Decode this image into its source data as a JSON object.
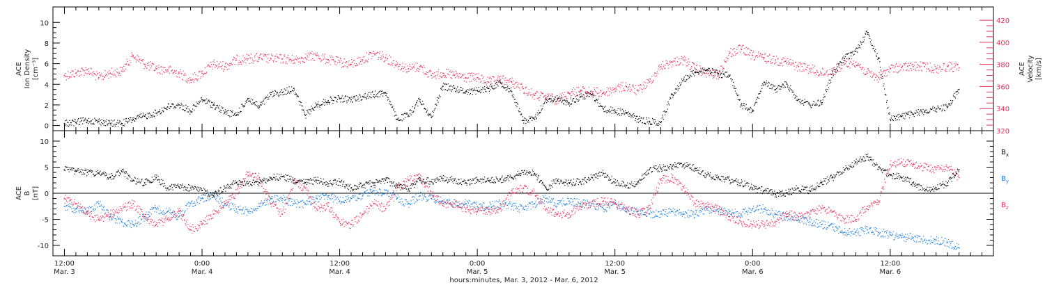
{
  "chart_data": [
    {
      "type": "scatter",
      "panel": "top",
      "ylabel_left": [
        "ACE",
        "Ion Density",
        "[cm⁻³]"
      ],
      "ylabel_right": [
        "ACE",
        "Velocity",
        "[km/s]"
      ],
      "ylim_left": [
        -0.5,
        11.5
      ],
      "ylim_right": [
        320,
        432
      ],
      "yticks_left": [
        0,
        2,
        4,
        6,
        8,
        10
      ],
      "yticks_right": [
        320,
        340,
        360,
        380,
        400,
        420
      ],
      "series": [
        {
          "color": "#000000",
          "axis": "left",
          "x": [
            0,
            1,
            2,
            3,
            4,
            5,
            6,
            7,
            8,
            9,
            10,
            11,
            12,
            13,
            14,
            15,
            16,
            17,
            18,
            19,
            20,
            21,
            22,
            23,
            24,
            25,
            26,
            27,
            28,
            29,
            30,
            31,
            32,
            33,
            34,
            35,
            36,
            37,
            38,
            39,
            40,
            41,
            42,
            43,
            44,
            45,
            46,
            47,
            48,
            49,
            50,
            51,
            52,
            53,
            54,
            55,
            56,
            57,
            58,
            59,
            60,
            61,
            62,
            63,
            64,
            65,
            66,
            67,
            68,
            69,
            70,
            71,
            72,
            73,
            74,
            75,
            76,
            77,
            78
          ],
          "y": [
            0.2,
            0.3,
            0.5,
            0.4,
            0.2,
            0.2,
            0.6,
            0.9,
            1.2,
            1.8,
            2.0,
            1.4,
            2.5,
            2.0,
            1.3,
            1.0,
            2.6,
            1.8,
            3.0,
            3.2,
            3.6,
            1.0,
            2.0,
            2.4,
            2.6,
            2.5,
            2.8,
            3.0,
            3.2,
            0.6,
            1.0,
            2.5,
            0.8,
            3.8,
            3.6,
            3.3,
            3.4,
            3.6,
            4.2,
            3.3,
            0.5,
            0.6,
            2.5,
            2.6,
            2.2,
            2.8,
            3.0,
            1.6,
            1.4,
            1.2,
            0.6,
            0.4,
            0.3,
            3.0,
            4.5,
            5.2,
            5.4,
            5.0,
            4.8,
            2.0,
            1.5,
            4.2,
            3.5,
            4.0,
            2.5,
            2.0,
            2.2,
            5.0,
            6.5,
            7.2,
            9.0,
            6.5,
            0.6,
            0.9,
            1.1,
            1.4,
            1.6,
            1.8,
            3.5
          ]
        },
        {
          "color": "#e8325f",
          "axis": "right",
          "x": [
            0,
            1,
            2,
            3,
            4,
            5,
            6,
            7,
            8,
            9,
            10,
            11,
            12,
            13,
            14,
            15,
            16,
            17,
            18,
            19,
            20,
            21,
            22,
            23,
            24,
            25,
            26,
            27,
            28,
            29,
            30,
            31,
            32,
            33,
            34,
            35,
            36,
            37,
            38,
            39,
            40,
            41,
            42,
            43,
            44,
            45,
            46,
            47,
            48,
            49,
            50,
            51,
            52,
            53,
            54,
            55,
            56,
            57,
            58,
            59,
            60,
            61,
            62,
            63,
            64,
            65,
            66,
            67,
            68,
            69,
            70,
            71,
            72,
            73,
            74,
            75,
            76,
            77,
            78
          ],
          "y": [
            370,
            372,
            375,
            368,
            372,
            374,
            388,
            380,
            376,
            375,
            372,
            366,
            372,
            380,
            378,
            384,
            385,
            386,
            385,
            385,
            384,
            386,
            388,
            384,
            382,
            380,
            384,
            390,
            386,
            380,
            376,
            378,
            370,
            372,
            370,
            368,
            368,
            364,
            366,
            364,
            358,
            352,
            350,
            348,
            354,
            356,
            355,
            354,
            358,
            360,
            356,
            364,
            378,
            382,
            384,
            376,
            372,
            370,
            390,
            394,
            388,
            386,
            384,
            382,
            378,
            376,
            372,
            374,
            380,
            382,
            372,
            368,
            376,
            377,
            378,
            378,
            376,
            378,
            377
          ]
        }
      ]
    },
    {
      "type": "scatter",
      "panel": "bottom",
      "ylabel_left": [
        "ACE",
        "B",
        "[nT]"
      ],
      "ylim": [
        -12,
        12
      ],
      "yticks": [
        -10,
        -5,
        0,
        5,
        10
      ],
      "zero_line": true,
      "series": [
        {
          "name": "Bx",
          "color": "#000000",
          "x": [
            0,
            1,
            2,
            3,
            4,
            5,
            6,
            7,
            8,
            9,
            10,
            11,
            12,
            13,
            14,
            15,
            16,
            17,
            18,
            19,
            20,
            21,
            22,
            23,
            24,
            25,
            26,
            27,
            28,
            29,
            30,
            31,
            32,
            33,
            34,
            35,
            36,
            37,
            38,
            39,
            40,
            41,
            42,
            43,
            44,
            45,
            46,
            47,
            48,
            49,
            50,
            51,
            52,
            53,
            54,
            55,
            56,
            57,
            58,
            59,
            60,
            61,
            62,
            63,
            64,
            65,
            66,
            67,
            68,
            69,
            70,
            71,
            72,
            73,
            74,
            75,
            76,
            77,
            78
          ],
          "y": [
            4.5,
            4.2,
            4.0,
            3.8,
            3.0,
            4.2,
            2.5,
            2.0,
            3.0,
            1.0,
            1.2,
            1.0,
            0.5,
            -0.5,
            1.0,
            2.0,
            1.8,
            2.0,
            3.0,
            3.2,
            2.5,
            2.0,
            2.5,
            1.8,
            2.2,
            1.0,
            1.5,
            2.0,
            2.5,
            1.5,
            0.8,
            2.5,
            2.2,
            2.8,
            2.5,
            2.0,
            2.6,
            2.4,
            2.6,
            3.0,
            4.0,
            3.8,
            1.0,
            2.5,
            2.0,
            2.2,
            3.0,
            3.8,
            2.0,
            1.5,
            2.0,
            4.5,
            4.8,
            5.2,
            5.5,
            4.8,
            3.5,
            3.0,
            2.5,
            2.0,
            1.0,
            0.5,
            -0.2,
            0.0,
            1.0,
            0.5,
            2.0,
            3.0,
            4.5,
            6.0,
            7.0,
            5.0,
            3.5,
            3.0,
            2.0,
            0.5,
            1.0,
            2.0,
            4.5
          ]
        },
        {
          "name": "By",
          "color": "#1e7fd8",
          "x": [
            0,
            1,
            2,
            3,
            4,
            5,
            6,
            7,
            8,
            9,
            10,
            11,
            12,
            13,
            14,
            15,
            16,
            17,
            18,
            19,
            20,
            21,
            22,
            23,
            24,
            25,
            26,
            27,
            28,
            29,
            30,
            31,
            32,
            33,
            34,
            35,
            36,
            37,
            38,
            39,
            40,
            41,
            42,
            43,
            44,
            45,
            46,
            47,
            48,
            49,
            50,
            51,
            52,
            53,
            54,
            55,
            56,
            57,
            58,
            59,
            60,
            61,
            62,
            63,
            64,
            65,
            66,
            67,
            68,
            69,
            70,
            71,
            72,
            73,
            74,
            75,
            76,
            77,
            78
          ],
          "y": [
            -2.5,
            -3.0,
            -3.5,
            -2.0,
            -4.5,
            -5.5,
            -6.0,
            -4.5,
            -3.0,
            -3.5,
            -4.5,
            -2.0,
            -1.0,
            -0.5,
            -2.0,
            -3.0,
            -3.5,
            -2.5,
            -1.0,
            -1.0,
            -2.0,
            -2.0,
            -1.0,
            -0.5,
            -1.5,
            -1.0,
            -0.5,
            0.5,
            0.0,
            -1.0,
            -2.0,
            -0.5,
            -1.0,
            -1.5,
            -2.0,
            -2.0,
            -2.5,
            -2.5,
            -2.0,
            -2.5,
            -3.0,
            -2.0,
            -1.0,
            -2.0,
            -1.5,
            -2.0,
            -2.0,
            -3.0,
            -2.0,
            -3.5,
            -3.5,
            -4.0,
            -4.0,
            -3.5,
            -4.0,
            -4.0,
            -3.0,
            -3.5,
            -3.5,
            -4.0,
            -3.0,
            -3.0,
            -4.0,
            -4.5,
            -5.0,
            -5.5,
            -6.0,
            -6.5,
            -7.5,
            -7.5,
            -7.0,
            -7.5,
            -8.0,
            -8.5,
            -8.5,
            -9.0,
            -9.0,
            -9.5,
            -10.5
          ]
        },
        {
          "name": "Bz",
          "color": "#e8325f",
          "x": [
            0,
            1,
            2,
            3,
            4,
            5,
            6,
            7,
            8,
            9,
            10,
            11,
            12,
            13,
            14,
            15,
            16,
            17,
            18,
            19,
            20,
            21,
            22,
            23,
            24,
            25,
            26,
            27,
            28,
            29,
            30,
            31,
            32,
            33,
            34,
            35,
            36,
            37,
            38,
            39,
            40,
            41,
            42,
            43,
            44,
            45,
            46,
            47,
            48,
            49,
            50,
            51,
            52,
            53,
            54,
            55,
            56,
            57,
            58,
            59,
            60,
            61,
            62,
            63,
            64,
            65,
            66,
            67,
            68,
            69,
            70,
            71,
            72,
            73,
            74,
            75,
            76,
            77,
            78
          ],
          "y": [
            -1.0,
            -2.0,
            -4.0,
            -5.0,
            -4.0,
            -3.0,
            -2.0,
            -4.5,
            -6.0,
            -5.0,
            -3.5,
            -7.0,
            -6.0,
            -4.0,
            -2.0,
            0.0,
            4.0,
            3.0,
            -2.0,
            -4.0,
            2.0,
            1.0,
            -3.0,
            -2.5,
            -5.5,
            -6.0,
            -4.0,
            -2.0,
            -3.0,
            1.0,
            2.5,
            3.0,
            0.0,
            -2.0,
            -2.0,
            -3.0,
            -3.5,
            -3.5,
            -3.0,
            0.5,
            1.0,
            0.0,
            -3.0,
            -4.0,
            -4.0,
            -2.5,
            -2.0,
            -1.5,
            -2.0,
            -3.0,
            -4.0,
            -3.0,
            2.5,
            3.0,
            1.0,
            -2.0,
            -2.5,
            -3.0,
            -4.5,
            -5.5,
            -6.0,
            -6.0,
            -5.5,
            -4.0,
            -4.5,
            -4.0,
            -3.0,
            -3.5,
            -5.0,
            -5.0,
            -2.5,
            -1.5,
            5.5,
            6.0,
            5.5,
            5.0,
            4.5,
            5.0,
            3.0
          ]
        }
      ],
      "legend": [
        "Bx",
        "By",
        "Bz"
      ],
      "legend_placement": "right"
    }
  ],
  "x_axis": {
    "tick_labels": [
      {
        "time": "12:00",
        "date": "Mar. 3"
      },
      {
        "time": "0:00",
        "date": "Mar. 4"
      },
      {
        "time": "12:00",
        "date": "Mar. 4"
      },
      {
        "time": "0:00",
        "date": "Mar. 5"
      },
      {
        "time": "12:00",
        "date": "Mar. 5"
      },
      {
        "time": "0:00",
        "date": "Mar. 6"
      },
      {
        "time": "12:00",
        "date": "Mar. 6"
      }
    ],
    "tick_hours": [
      0,
      12,
      24,
      36,
      48,
      60,
      72
    ],
    "xlim_hours": [
      -1,
      81
    ],
    "data_end_hours": 78,
    "xlabel": "hours:minutes, Mar.  3, 2012 - Mar.  6, 2012"
  },
  "colors": {
    "black": "#000000",
    "pink": "#e8325f",
    "blue": "#1e7fd8"
  }
}
